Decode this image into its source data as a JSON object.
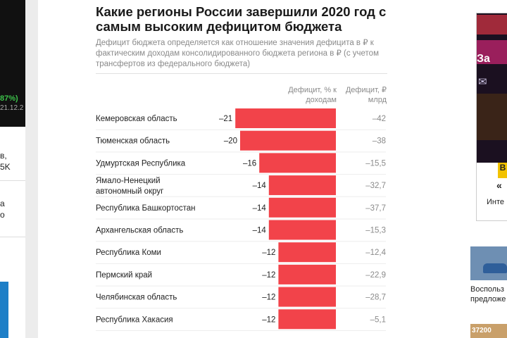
{
  "left_panel": {
    "ticker_pct": "87%)",
    "ticker_date": "21.12.2",
    "fragments": [
      "в,",
      "5K",
      "а",
      "о"
    ]
  },
  "chart_data": {
    "type": "bar",
    "title": "Какие регионы России завершили 2020 год с самым высоким дефицитом бюджета",
    "subtitle": "Дефицит бюджета определяется как отношение значения дефицита в ₽ к фактическим доходам консолидированного бюджета региона в ₽ (с учетом трансфертов из федерального бюджета)",
    "col1_header": "Дефицит, % к доходам",
    "col2_header": "Дефицит, ₽ млрд",
    "categories": [
      "Кемеровская область",
      "Тюменская область",
      "Удмуртская Республика",
      "Ямало-Ненецкий автономный округ",
      "Республика Башкортостан",
      "Архангельская область",
      "Республика Коми",
      "Пермский край",
      "Челябинская область",
      "Республика Хакасия"
    ],
    "series": [
      {
        "values": [
          -21,
          -20,
          -16,
          -14,
          -14,
          -14,
          -12,
          -12,
          -12,
          -12
        ]
      },
      {
        "values": [
          -42,
          -38,
          -15.5,
          -32.7,
          -37.7,
          -15.3,
          -12.4,
          -22.9,
          -28.7,
          -5.1
        ]
      }
    ],
    "value_labels": [
      "–21",
      "–20",
      "–16",
      "–14",
      "–14",
      "–14",
      "–12",
      "–12",
      "–12",
      "–12"
    ],
    "rub_labels": [
      "–42",
      "–38",
      "–15,5",
      "–32,7",
      "–37,7",
      "–15,3",
      "–12,4",
      "–22,9",
      "–28,7",
      "–5,1"
    ],
    "bar_color": "#f2434a"
  },
  "right_panel": {
    "ad_text_1": "За",
    "ad_text_2": "«",
    "ad_text_3": "Инте",
    "ad_badge": "В",
    "news_line_1": "Воспольз",
    "news_line_2": "предложе",
    "thumb_text": "37200"
  }
}
